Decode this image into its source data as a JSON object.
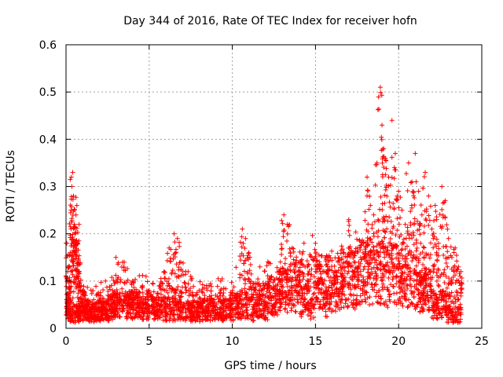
{
  "chart_data": {
    "type": "scatter",
    "title": "Day 344 of 2016, Rate Of TEC Index for receiver hofn",
    "xlabel": "GPS time / hours",
    "ylabel": "ROTI / TECUs",
    "xlim": [
      0,
      25
    ],
    "ylim": [
      0,
      0.6
    ],
    "xticks": [
      0,
      5,
      10,
      15,
      20,
      25
    ],
    "yticks": [
      0,
      0.1,
      0.2,
      0.3,
      0.4,
      0.5,
      0.6
    ],
    "xtick_labels": [
      "0",
      "5",
      "10",
      "15",
      "20",
      "25"
    ],
    "ytick_labels": [
      "0",
      "0.1",
      "0.2",
      "0.3",
      "0.4",
      "0.5",
      "0.6"
    ],
    "grid": true,
    "marker": "+",
    "color": "#ff0000",
    "series": [
      {
        "name": "ROTI",
        "x": [
          0.05,
          0.1,
          0.15,
          0.2,
          0.25,
          0.3,
          0.35,
          0.4,
          0.45,
          0.5,
          0.55,
          0.6,
          0.65,
          0.7,
          0.75,
          0.8,
          0.9,
          1.0,
          1.1,
          1.2,
          1.4,
          1.6,
          1.8,
          2.0,
          2.2,
          2.5,
          2.8,
          3.0,
          3.2,
          3.5,
          3.8,
          4.0,
          4.3,
          4.6,
          5.0,
          5.3,
          5.6,
          5.9,
          6.2,
          6.5,
          6.7,
          6.9,
          7.2,
          7.5,
          7.8,
          8.0,
          8.3,
          8.6,
          9.0,
          9.3,
          9.6,
          10.0,
          10.3,
          10.6,
          10.8,
          11.0,
          11.3,
          11.6,
          12.0,
          12.3,
          12.6,
          12.9,
          13.1,
          13.3,
          13.6,
          13.9,
          14.2,
          14.5,
          14.8,
          15.0,
          15.3,
          15.6,
          16.0,
          16.3,
          16.6,
          17.0,
          17.3,
          17.6,
          17.9,
          18.1,
          18.3,
          18.5,
          18.7,
          18.9,
          19.0,
          19.1,
          19.2,
          19.4,
          19.6,
          19.8,
          20.0,
          20.2,
          20.4,
          20.6,
          20.8,
          21.0,
          21.2,
          21.4,
          21.6,
          21.8,
          22.0,
          22.2,
          22.4,
          22.6,
          22.8,
          23.0,
          23.2,
          23.4,
          23.6,
          23.75
        ],
        "values": [
          0.18,
          0.12,
          0.06,
          0.1,
          0.16,
          0.25,
          0.3,
          0.33,
          0.28,
          0.22,
          0.2,
          0.24,
          0.26,
          0.18,
          0.14,
          0.12,
          0.09,
          0.08,
          0.07,
          0.06,
          0.05,
          0.05,
          0.04,
          0.06,
          0.05,
          0.06,
          0.08,
          0.15,
          0.07,
          0.14,
          0.06,
          0.1,
          0.07,
          0.09,
          0.08,
          0.06,
          0.09,
          0.12,
          0.17,
          0.2,
          0.19,
          0.14,
          0.12,
          0.11,
          0.07,
          0.08,
          0.06,
          0.09,
          0.07,
          0.08,
          0.06,
          0.08,
          0.07,
          0.21,
          0.19,
          0.16,
          0.05,
          0.06,
          0.05,
          0.07,
          0.09,
          0.12,
          0.24,
          0.22,
          0.17,
          0.11,
          0.07,
          0.09,
          0.06,
          0.18,
          0.12,
          0.08,
          0.1,
          0.11,
          0.13,
          0.23,
          0.12,
          0.14,
          0.18,
          0.32,
          0.26,
          0.24,
          0.35,
          0.51,
          0.43,
          0.38,
          0.36,
          0.32,
          0.44,
          0.37,
          0.29,
          0.25,
          0.22,
          0.35,
          0.31,
          0.37,
          0.29,
          0.24,
          0.33,
          0.28,
          0.21,
          0.26,
          0.18,
          0.3,
          0.27,
          0.19,
          0.15,
          0.17,
          0.13,
          0.12
        ],
        "baseline": [
          0.03,
          0.035,
          0.04,
          0.045,
          0.05,
          0.045,
          0.04,
          0.035,
          0.035,
          0.04,
          0.04,
          0.05,
          0.06,
          0.07,
          0.08,
          0.09,
          0.1,
          0.1,
          0.11,
          0.12,
          0.12,
          0.11,
          0.1,
          0.08,
          0.05,
          0.03
        ]
      }
    ]
  }
}
